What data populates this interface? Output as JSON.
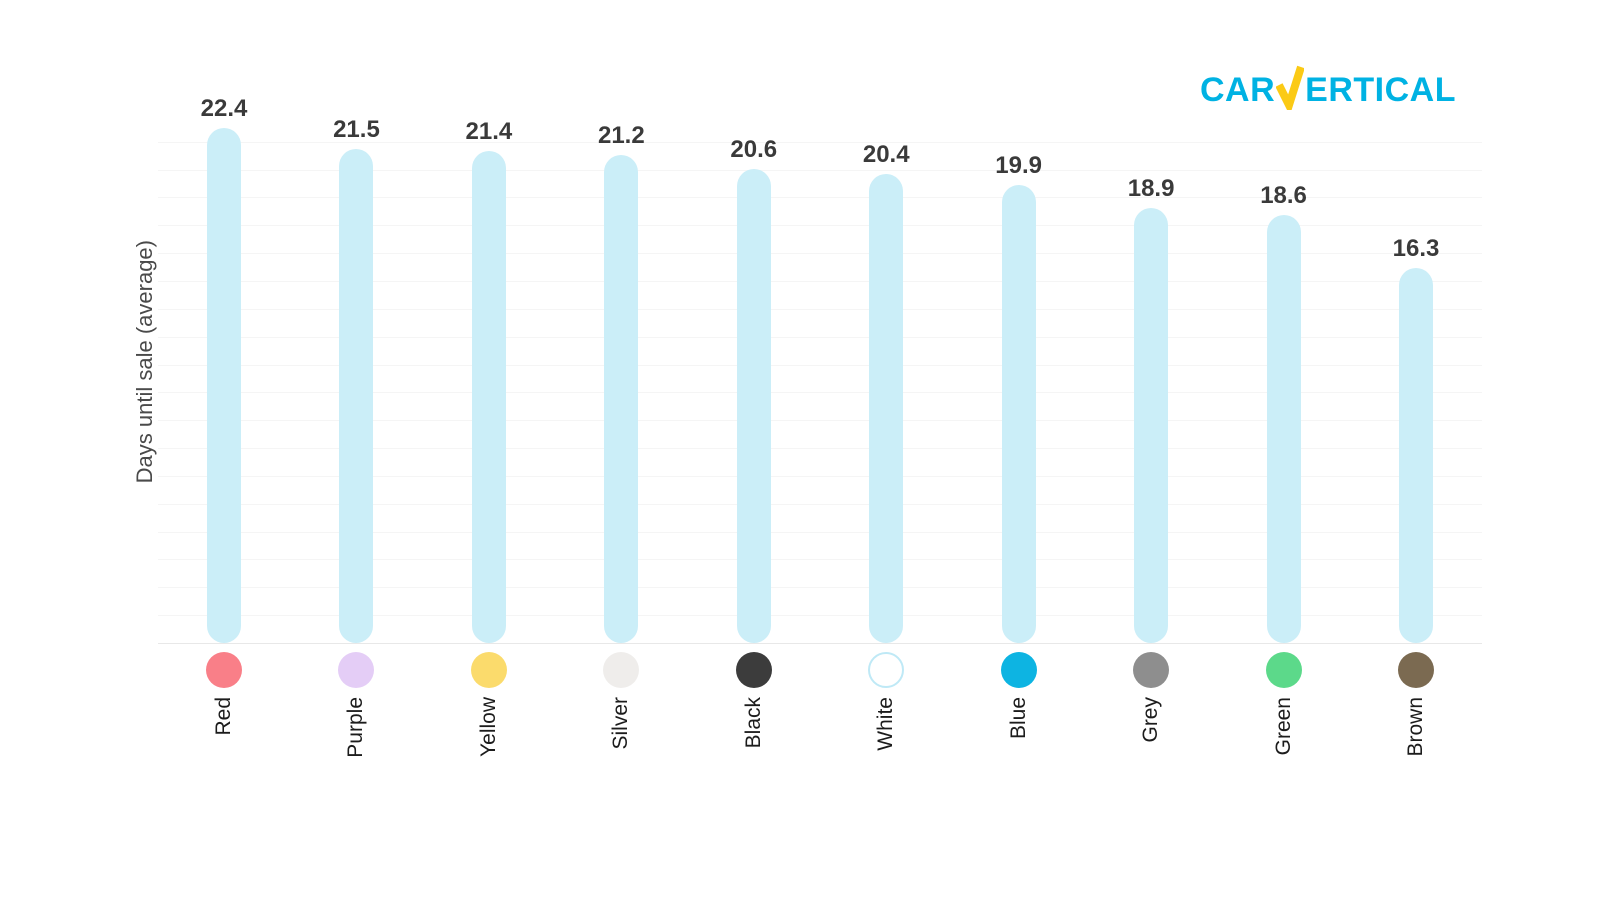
{
  "logo": {
    "full_text": "CARVERTICAL",
    "text_before_v": "CAR",
    "v_letter": "V",
    "text_after_v": "ERTICAL",
    "brand_cyan": "#00B2E3",
    "brand_yellow": "#FBCA15"
  },
  "chart_data": {
    "type": "bar",
    "title": "",
    "xlabel": "",
    "ylabel": "Days until sale (average)",
    "categories": [
      "Red",
      "Purple",
      "Yellow",
      "Silver",
      "Black",
      "White",
      "Blue",
      "Grey",
      "Green",
      "Brown"
    ],
    "values": [
      22.4,
      21.5,
      21.4,
      21.2,
      20.6,
      20.4,
      19.9,
      18.9,
      18.6,
      16.3
    ],
    "ylim": [
      0,
      24
    ],
    "grid": "faint horizontal lines, no tick labels",
    "legend": "none",
    "bar_color": "#CBEEF8",
    "value_label_color": "#3A3A3A",
    "category_label_color": "#1C1C1C",
    "axis_label_color": "#4A4A4A",
    "dot_colors": [
      "#F97F88",
      "#E4CDF6",
      "#FBDB6C",
      "#EFEDEB",
      "#3C3C3C",
      "#FFFFFF",
      "#0DB4E2",
      "#8E8E8E",
      "#5CD98A",
      "#7B6A51"
    ],
    "white_dot_border_color": "#BFE9F6"
  }
}
